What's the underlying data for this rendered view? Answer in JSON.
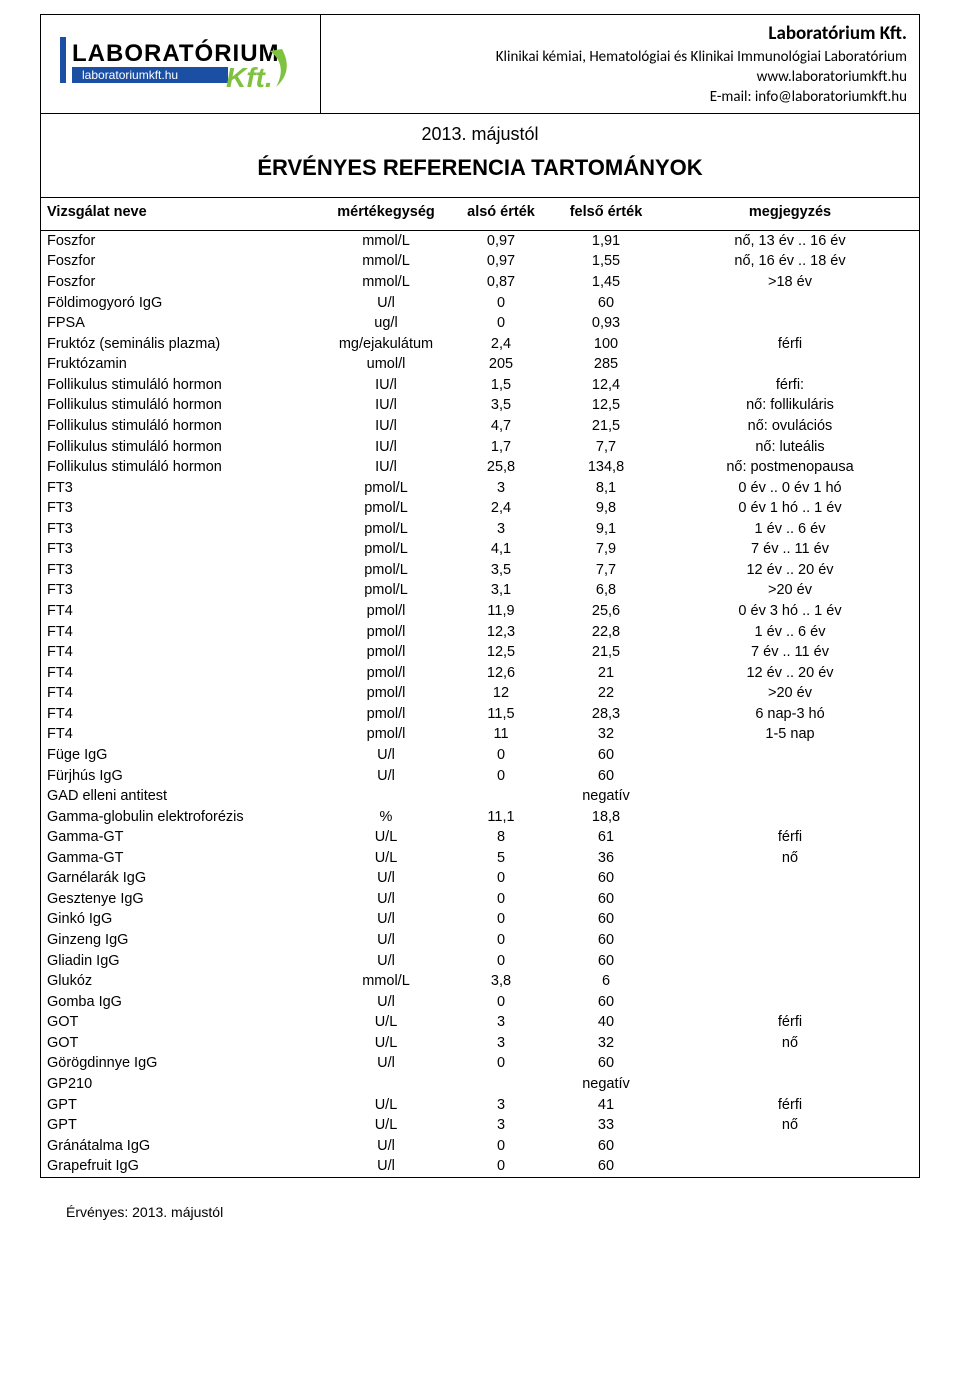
{
  "header": {
    "company_name": "Laboratórium Kft.",
    "subtitle": "Klinikai kémiai, Hematológiai és Klinikai Immunológiai Laboratórium",
    "website": "www.laboratoriumkft.hu",
    "email_line": "E-mail: info@laboratoriumkft.hu",
    "logo_main": "LABORATÓRIUM",
    "logo_sub": "laboratoriumkft.hu",
    "logo_suffix": "Kft.",
    "logo_colors": {
      "bar": "#1a4fa3",
      "text_sub_bg": "#1a4fa3",
      "text_sub": "#ffffff",
      "suffix": "#7fc241",
      "swoosh": "#7fc241"
    }
  },
  "title": {
    "date": "2013. májustól",
    "main": "ÉRVÉNYES REFERENCIA TARTOMÁNYOK"
  },
  "columns": {
    "name": "Vizsgálat neve",
    "unit": "mértékegység",
    "low": "alsó érték",
    "high": "felső érték",
    "note": "megjegyzés"
  },
  "rows": [
    {
      "name": "Foszfor",
      "unit": "mmol/L",
      "low": "0,97",
      "high": "1,91",
      "note": "nő, 13 év .. 16 év"
    },
    {
      "name": "Foszfor",
      "unit": "mmol/L",
      "low": "0,97",
      "high": "1,55",
      "note": "nő, 16 év .. 18 év"
    },
    {
      "name": "Foszfor",
      "unit": "mmol/L",
      "low": "0,87",
      "high": "1,45",
      "note": ">18 év"
    },
    {
      "name": "Földimogyoró IgG",
      "unit": "U/l",
      "low": "0",
      "high": "60",
      "note": ""
    },
    {
      "name": "FPSA",
      "unit": "ug/l",
      "low": "0",
      "high": "0,93",
      "note": ""
    },
    {
      "name": "Fruktóz  (seminális plazma)",
      "unit": "mg/ejakulátum",
      "low": "2,4",
      "high": "100",
      "note": "férfi"
    },
    {
      "name": "Fruktózamin",
      "unit": "umol/l",
      "low": "205",
      "high": "285",
      "note": ""
    },
    {
      "name": "Follikulus stimuláló hormon",
      "unit": "IU/l",
      "low": "1,5",
      "high": "12,4",
      "note": "férfi:"
    },
    {
      "name": "Follikulus stimuláló hormon",
      "unit": "IU/l",
      "low": "3,5",
      "high": "12,5",
      "note": "nő: follikuláris"
    },
    {
      "name": "Follikulus stimuláló hormon",
      "unit": "IU/l",
      "low": "4,7",
      "high": "21,5",
      "note": "nő: ovulációs"
    },
    {
      "name": "Follikulus stimuláló hormon",
      "unit": "IU/l",
      "low": "1,7",
      "high": "7,7",
      "note": "nő: luteális"
    },
    {
      "name": "Follikulus stimuláló hormon",
      "unit": "IU/l",
      "low": "25,8",
      "high": "134,8",
      "note": "nő: postmenopausa"
    },
    {
      "name": "FT3",
      "unit": "pmol/L",
      "low": "3",
      "high": "8,1",
      "note": "0 év .. 0 év 1 hó"
    },
    {
      "name": "FT3",
      "unit": "pmol/L",
      "low": "2,4",
      "high": "9,8",
      "note": "0 év 1 hó .. 1 év"
    },
    {
      "name": "FT3",
      "unit": "pmol/L",
      "low": "3",
      "high": "9,1",
      "note": "1 év .. 6 év"
    },
    {
      "name": "FT3",
      "unit": "pmol/L",
      "low": "4,1",
      "high": "7,9",
      "note": "7 év .. 11 év"
    },
    {
      "name": "FT3",
      "unit": "pmol/L",
      "low": "3,5",
      "high": "7,7",
      "note": "12 év .. 20 év"
    },
    {
      "name": "FT3",
      "unit": "pmol/L",
      "low": "3,1",
      "high": "6,8",
      "note": ">20 év"
    },
    {
      "name": "FT4",
      "unit": "pmol/l",
      "low": "11,9",
      "high": "25,6",
      "note": "0 év 3 hó .. 1 év"
    },
    {
      "name": "FT4",
      "unit": "pmol/l",
      "low": "12,3",
      "high": "22,8",
      "note": "1 év .. 6 év"
    },
    {
      "name": "FT4",
      "unit": "pmol/l",
      "low": "12,5",
      "high": "21,5",
      "note": "7 év .. 11 év"
    },
    {
      "name": "FT4",
      "unit": "pmol/l",
      "low": "12,6",
      "high": "21",
      "note": "12 év .. 20 év"
    },
    {
      "name": "FT4",
      "unit": "pmol/l",
      "low": "12",
      "high": "22",
      "note": ">20 év"
    },
    {
      "name": "FT4",
      "unit": "pmol/l",
      "low": "11,5",
      "high": "28,3",
      "note": "6 nap-3 hó"
    },
    {
      "name": "FT4",
      "unit": "pmol/l",
      "low": "11",
      "high": "32",
      "note": "1-5 nap"
    },
    {
      "name": "Füge IgG",
      "unit": "U/l",
      "low": "0",
      "high": "60",
      "note": ""
    },
    {
      "name": "Fürjhús IgG",
      "unit": "U/l",
      "low": "0",
      "high": "60",
      "note": ""
    },
    {
      "name": "GAD elleni antitest",
      "unit": "",
      "low": "",
      "high": "negatív",
      "note": ""
    },
    {
      "name": "Gamma-globulin elektroforézis",
      "unit": "%",
      "low": "11,1",
      "high": "18,8",
      "note": ""
    },
    {
      "name": "Gamma-GT",
      "unit": "U/L",
      "low": "8",
      "high": "61",
      "note": "férfi"
    },
    {
      "name": "Gamma-GT",
      "unit": "U/L",
      "low": "5",
      "high": "36",
      "note": "nő"
    },
    {
      "name": "Garnélarák IgG",
      "unit": "U/l",
      "low": "0",
      "high": "60",
      "note": ""
    },
    {
      "name": "Gesztenye IgG",
      "unit": "U/l",
      "low": "0",
      "high": "60",
      "note": ""
    },
    {
      "name": "Ginkó IgG",
      "unit": "U/l",
      "low": "0",
      "high": "60",
      "note": ""
    },
    {
      "name": "Ginzeng IgG",
      "unit": "U/l",
      "low": "0",
      "high": "60",
      "note": ""
    },
    {
      "name": "Gliadin IgG",
      "unit": "U/l",
      "low": "0",
      "high": "60",
      "note": ""
    },
    {
      "name": "Glukóz",
      "unit": "mmol/L",
      "low": "3,8",
      "high": "6",
      "note": ""
    },
    {
      "name": "Gomba IgG",
      "unit": "U/l",
      "low": "0",
      "high": "60",
      "note": ""
    },
    {
      "name": "GOT",
      "unit": "U/L",
      "low": "3",
      "high": "40",
      "note": "férfi"
    },
    {
      "name": "GOT",
      "unit": "U/L",
      "low": "3",
      "high": "32",
      "note": "nő"
    },
    {
      "name": "Görögdinnye IgG",
      "unit": "U/l",
      "low": "0",
      "high": "60",
      "note": ""
    },
    {
      "name": "GP210",
      "unit": "",
      "low": "",
      "high": "negatív",
      "note": ""
    },
    {
      "name": "GPT",
      "unit": "U/L",
      "low": "3",
      "high": "41",
      "note": "férfi"
    },
    {
      "name": "GPT",
      "unit": "U/L",
      "low": "3",
      "high": "33",
      "note": "nő"
    },
    {
      "name": "Gránátalma IgG",
      "unit": "U/l",
      "low": "0",
      "high": "60",
      "note": ""
    },
    {
      "name": "Grapefruit IgG",
      "unit": "U/l",
      "low": "0",
      "high": "60",
      "note": ""
    }
  ],
  "footer": "Érvényes: 2013. májustól"
}
